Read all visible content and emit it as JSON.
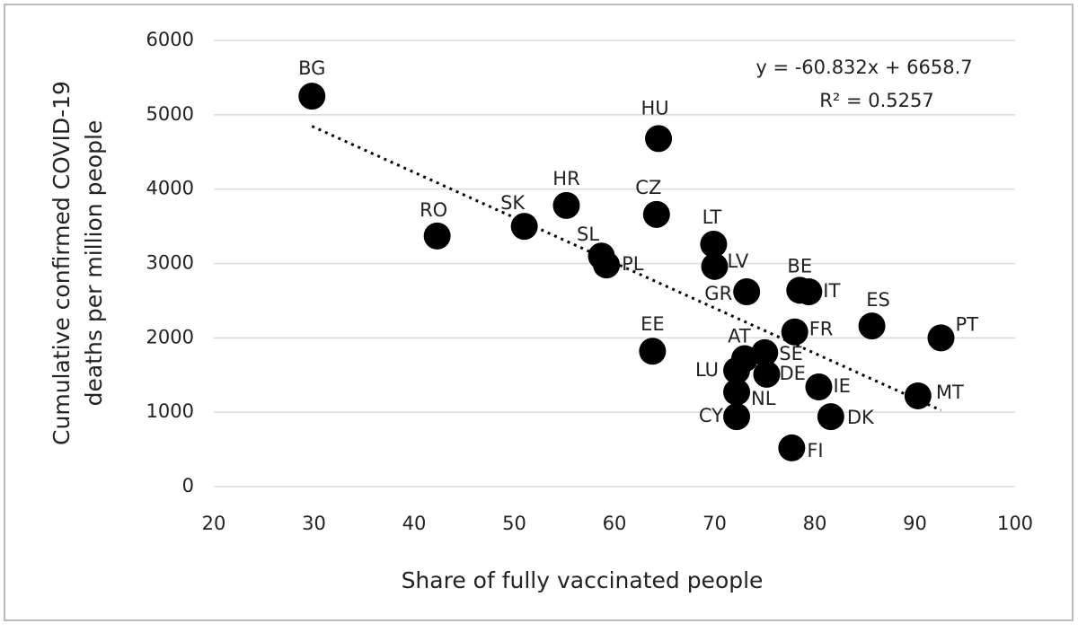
{
  "chart_data": {
    "type": "scatter",
    "xlabel": "Share of fully vaccinated people",
    "ylabel": [
      "Cumulative confirmed COVID-19",
      "deaths per million people"
    ],
    "xlim": [
      20,
      100
    ],
    "xticks": [
      20,
      30,
      40,
      50,
      60,
      70,
      80,
      90,
      100
    ],
    "ylim": [
      0,
      6000
    ],
    "yticks": [
      0,
      1000,
      2000,
      3000,
      4000,
      5000,
      6000
    ],
    "grid": true,
    "color": "#000000",
    "labels": [
      "BG",
      "RO",
      "SK",
      "HR",
      "SL",
      "PL",
      "CZ",
      "HU",
      "LT",
      "LV",
      "GR",
      "EE",
      "BE",
      "IT",
      "ES",
      "PT",
      "FR",
      "AT",
      "SE",
      "LU",
      "DE",
      "NL",
      "IE",
      "MT",
      "CY",
      "DK",
      "FI"
    ],
    "x": [
      29.8,
      42.3,
      51.0,
      55.2,
      58.7,
      59.2,
      64.2,
      64.4,
      69.9,
      70.0,
      73.2,
      63.8,
      78.5,
      79.4,
      85.7,
      92.6,
      78.0,
      73.0,
      75.0,
      72.2,
      75.2,
      72.2,
      80.4,
      90.3,
      72.2,
      81.6,
      77.7
    ],
    "y": [
      5250,
      3370,
      3500,
      3780,
      3100,
      2980,
      3660,
      4680,
      3260,
      2960,
      2620,
      1820,
      2640,
      2620,
      2160,
      2000,
      2080,
      1720,
      1800,
      1560,
      1510,
      1270,
      1340,
      1220,
      940,
      940,
      520
    ],
    "trendline": {
      "x": [
        29.8,
        92.6
      ],
      "slope": -60.832,
      "intercept": 6658.7,
      "equation": "y = -60.832x + 6658.7",
      "r2": "R² = 0.5257"
    }
  }
}
